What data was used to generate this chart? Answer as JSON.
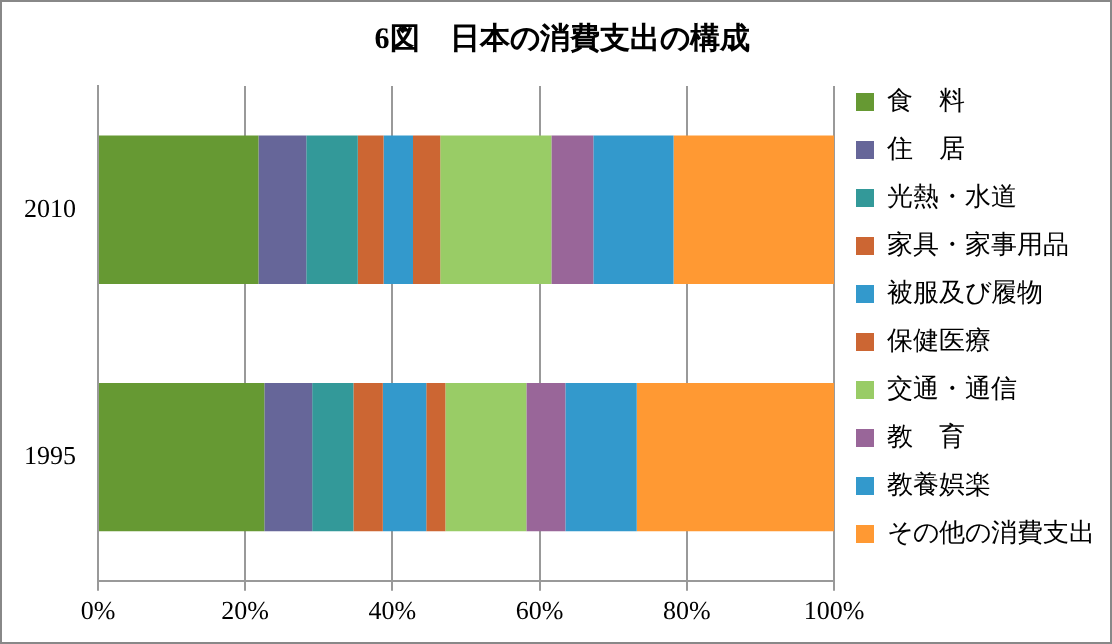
{
  "chart_data": {
    "type": "bar",
    "title": "6図　日本の消費支出の構成",
    "orientation": "horizontal",
    "stacked": true,
    "categories": [
      "2010",
      "1995"
    ],
    "series": [
      {
        "name": "食　料",
        "color": "#669933",
        "values": [
          21.8,
          22.6
        ]
      },
      {
        "name": "住　居",
        "color": "#666699",
        "values": [
          6.5,
          6.5
        ]
      },
      {
        "name": "光熱・水道",
        "color": "#339999",
        "values": [
          7.0,
          5.6
        ]
      },
      {
        "name": "家具・家事用品",
        "color": "#cc6633",
        "values": [
          3.5,
          4.0
        ]
      },
      {
        "name": "被服及び履物",
        "color": "#3399cc",
        "values": [
          4.0,
          5.9
        ]
      },
      {
        "name": "保健医療",
        "color": "#cc6633",
        "values": [
          3.7,
          2.6
        ]
      },
      {
        "name": "交通・通信",
        "color": "#99cc66",
        "values": [
          15.1,
          11.0
        ]
      },
      {
        "name": "教　育",
        "color": "#996699",
        "values": [
          5.7,
          5.3
        ]
      },
      {
        "name": "教養娯楽",
        "color": "#3399cc",
        "values": [
          10.9,
          9.7
        ]
      },
      {
        "name": "その他の消費支出",
        "color": "#ff9933",
        "values": [
          21.8,
          26.8
        ]
      }
    ],
    "xlim": [
      0,
      100
    ],
    "xticks": [
      {
        "value": 0,
        "label": "0%"
      },
      {
        "value": 20,
        "label": "20%"
      },
      {
        "value": 40,
        "label": "40%"
      },
      {
        "value": 60,
        "label": "60%"
      },
      {
        "value": 80,
        "label": "80%"
      },
      {
        "value": 100,
        "label": "100%"
      }
    ],
    "grid": "x",
    "legend": "right"
  }
}
